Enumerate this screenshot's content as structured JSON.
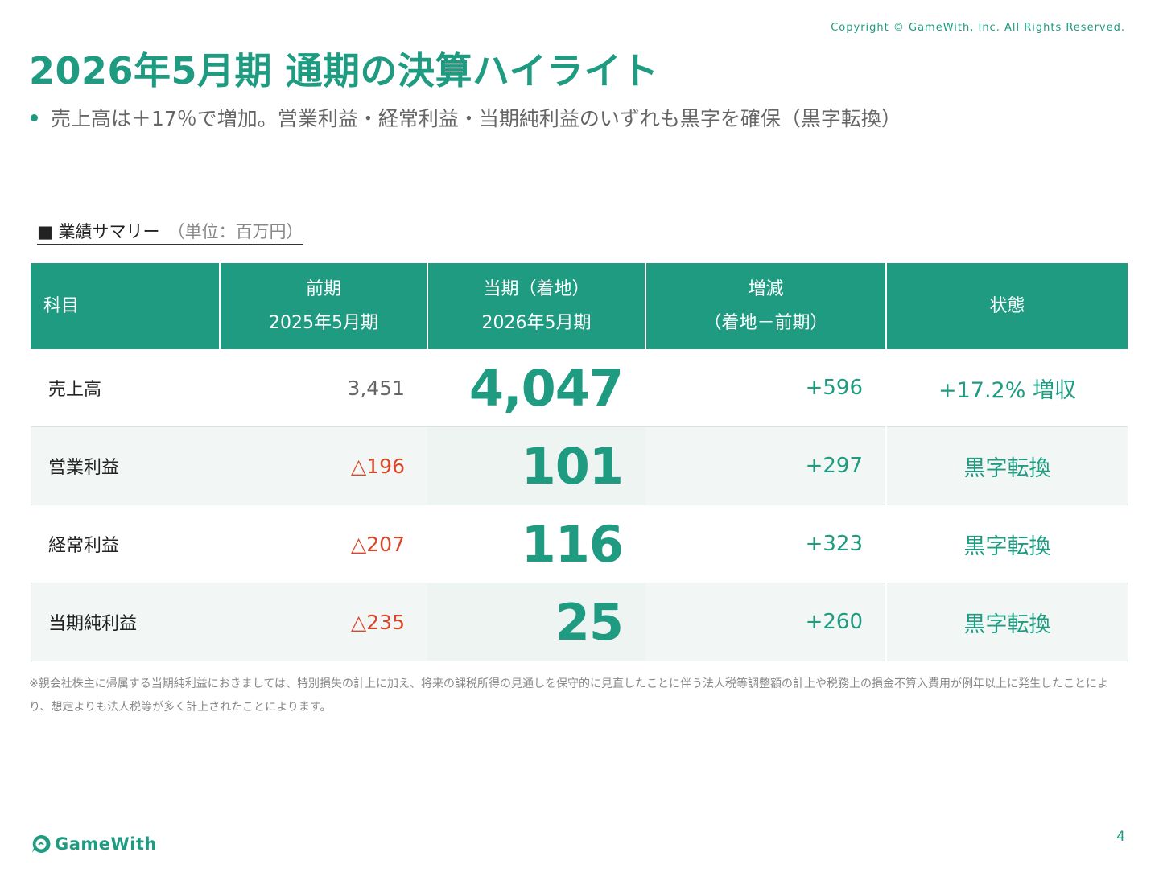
{
  "copyright": "Copyright © GameWith, Inc. All Rights Reserved.",
  "title": "2026年5月期 通期の決算ハイライト",
  "bullet": "売上高は＋17％で増加。営業利益・経常利益・当期純利益のいずれも黒字を確保（黒字転換）",
  "summary": {
    "heading": "■ 業績サマリー",
    "unit": "（単位：百万円）"
  },
  "table": {
    "headers": [
      {
        "line1": "科目",
        "line2": ""
      },
      {
        "line1": "前期",
        "line2": "2025年5月期"
      },
      {
        "line1": "当期（着地）",
        "line2": "2026年5月期"
      },
      {
        "line1": "増減",
        "line2": "（着地－前期）"
      },
      {
        "line1": "状態",
        "line2": ""
      }
    ],
    "rows": [
      {
        "item": "売上高",
        "prev": "3,451",
        "current": "4,047",
        "diff": "+596",
        "status": "+17.2% 増収"
      },
      {
        "item": "営業利益",
        "prev": "△196",
        "current": "101",
        "diff": "+297",
        "status": "黒字転換"
      },
      {
        "item": "経常利益",
        "prev": "△207",
        "current": "116",
        "diff": "+323",
        "status": "黒字転換"
      },
      {
        "item": "当期純利益",
        "prev": "△235",
        "current": "25",
        "diff": "+260",
        "status": "黒字転換"
      }
    ]
  },
  "footnote": "※親会社株主に帰属する当期純利益におきましては、特別損失の計上に加え、将来の課税所得の見通しを保守的に見直したことに伴う法人税等調整額の計上や税務上の損金不算入費用が例年以上に発生したことにより、想定よりも法人税等が多く計上されたことによります。",
  "logo": {
    "text": "GameWith",
    "icon": "gamewith-logo-icon"
  },
  "page_number": "4",
  "colors": {
    "brand": "#1e9b80",
    "negative": "#d9472b",
    "row_alt": "#f2f7f5"
  }
}
